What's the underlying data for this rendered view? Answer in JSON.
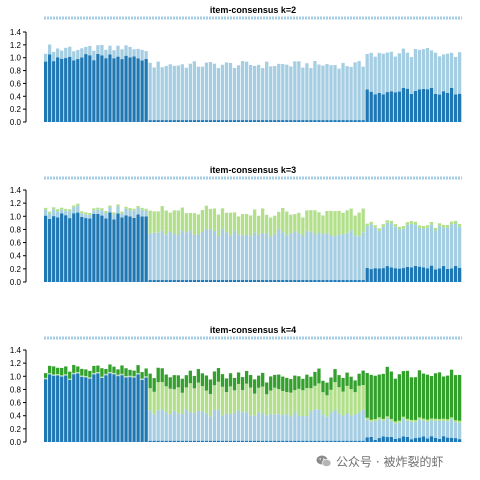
{
  "colors": {
    "dark_blue": "#1f78b4",
    "light_blue": "#a6cee3",
    "light_green": "#b2df8a",
    "dark_green": "#33a02c",
    "strip": "#a6cee3"
  },
  "watermark": {
    "text": "公众号 · 被炸裂的虾",
    "icon": "wechat-icon"
  },
  "chart_data": [
    {
      "type": "bar",
      "stacked": true,
      "title": "item-consensus k=2",
      "ylim": [
        0,
        1.4
      ],
      "yticks": [
        "0.0",
        "0.2",
        "0.4",
        "0.6",
        "0.8",
        "1.0",
        "1.2",
        "1.4"
      ],
      "n_items": 104,
      "series": [
        {
          "name": "",
          "color": "#1f78b4",
          "segments": [
            {
              "from": 0,
              "to": 26,
              "value": 1.0
            },
            {
              "from": 26,
              "to": 80,
              "value": 0.03
            },
            {
              "from": 80,
              "to": 104,
              "value": 0.48
            }
          ]
        },
        {
          "name": "",
          "color": "#a6cee3",
          "segments": [
            {
              "from": 0,
              "to": 26,
              "value": 0.14
            },
            {
              "from": 26,
              "to": 80,
              "value": 0.86
            },
            {
              "from": 80,
              "to": 104,
              "value": 0.6
            }
          ]
        }
      ]
    },
    {
      "type": "bar",
      "stacked": true,
      "title": "item-consensus k=3",
      "ylim": [
        0,
        1.4
      ],
      "yticks": [
        "0.0",
        "0.2",
        "0.4",
        "0.6",
        "0.8",
        "1.0",
        "1.2",
        "1.4"
      ],
      "n_items": 104,
      "series": [
        {
          "name": "",
          "color": "#1f78b4",
          "segments": [
            {
              "from": 0,
              "to": 26,
              "value": 1.0
            },
            {
              "from": 26,
              "to": 80,
              "value": 0.03
            },
            {
              "from": 80,
              "to": 104,
              "value": 0.22
            }
          ]
        },
        {
          "name": "",
          "color": "#a6cee3",
          "segments": [
            {
              "from": 0,
              "to": 26,
              "value": 0.08
            },
            {
              "from": 26,
              "to": 80,
              "value": 0.72
            },
            {
              "from": 80,
              "to": 104,
              "value": 0.62
            }
          ]
        },
        {
          "name": "",
          "color": "#b2df8a",
          "segments": [
            {
              "from": 0,
              "to": 26,
              "value": 0.03
            },
            {
              "from": 26,
              "to": 80,
              "value": 0.32
            },
            {
              "from": 80,
              "to": 104,
              "value": 0.04
            }
          ]
        }
      ]
    },
    {
      "type": "bar",
      "stacked": true,
      "title": "item-consensus k=4",
      "ylim": [
        0,
        1.4
      ],
      "yticks": [
        "0.0",
        "0.2",
        "0.4",
        "0.6",
        "0.8",
        "1.0",
        "1.2",
        "1.4"
      ],
      "n_items": 104,
      "series": [
        {
          "name": "",
          "color": "#1f78b4",
          "segments": [
            {
              "from": 0,
              "to": 26,
              "value": 1.0
            },
            {
              "from": 26,
              "to": 80,
              "value": 0.02
            },
            {
              "from": 80,
              "to": 104,
              "value": 0.06
            }
          ]
        },
        {
          "name": "",
          "color": "#a6cee3",
          "segments": [
            {
              "from": 0,
              "to": 26,
              "value": 0.01
            },
            {
              "from": 26,
              "to": 80,
              "value": 0.42
            },
            {
              "from": 80,
              "to": 104,
              "value": 0.26
            }
          ]
        },
        {
          "name": "",
          "color": "#b2df8a",
          "segments": [
            {
              "from": 0,
              "to": 26,
              "value": 0.01
            },
            {
              "from": 26,
              "to": 80,
              "value": 0.38
            },
            {
              "from": 80,
              "to": 104,
              "value": 0.03
            }
          ]
        },
        {
          "name": "",
          "color": "#33a02c",
          "segments": [
            {
              "from": 0,
              "to": 26,
              "value": 0.1
            },
            {
              "from": 26,
              "to": 80,
              "value": 0.2
            },
            {
              "from": 80,
              "to": 104,
              "value": 0.7
            }
          ]
        }
      ]
    }
  ]
}
